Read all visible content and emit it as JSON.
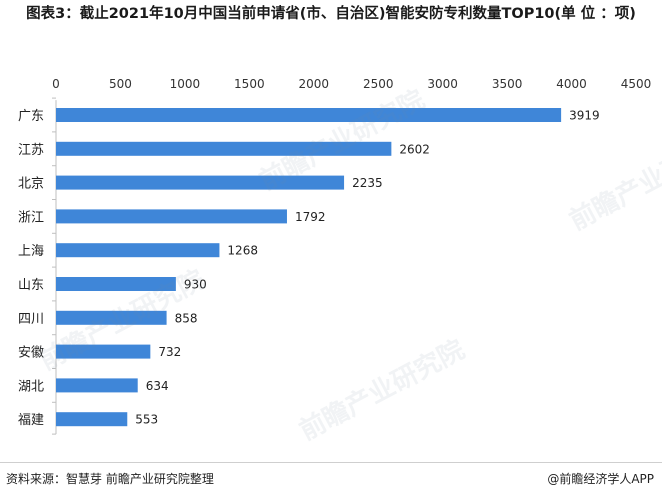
{
  "chart_data": {
    "type": "bar",
    "orientation": "horizontal",
    "title": "图表3：截止2021年10月中国当前申请省(市、自治区)智能安防专利数量TOP10(单 位 ：项)",
    "categories": [
      "广东",
      "江苏",
      "北京",
      "浙江",
      "上海",
      "山东",
      "四川",
      "安徽",
      "湖北",
      "福建"
    ],
    "values": [
      3919,
      2602,
      2235,
      1792,
      1268,
      930,
      858,
      732,
      634,
      553
    ],
    "x_ticks": [
      0,
      500,
      1000,
      1500,
      2000,
      2500,
      3000,
      3500,
      4000,
      4500
    ],
    "xlim": [
      0,
      4500
    ],
    "xaxis_position": "top",
    "bar_color": "#3f86d8",
    "grid": false
  },
  "footer": {
    "source": "资料来源：智慧芽 前瞻产业研究院整理",
    "brand": "@前瞻经济学人APP"
  },
  "watermark_text": "前瞻产业研究院"
}
